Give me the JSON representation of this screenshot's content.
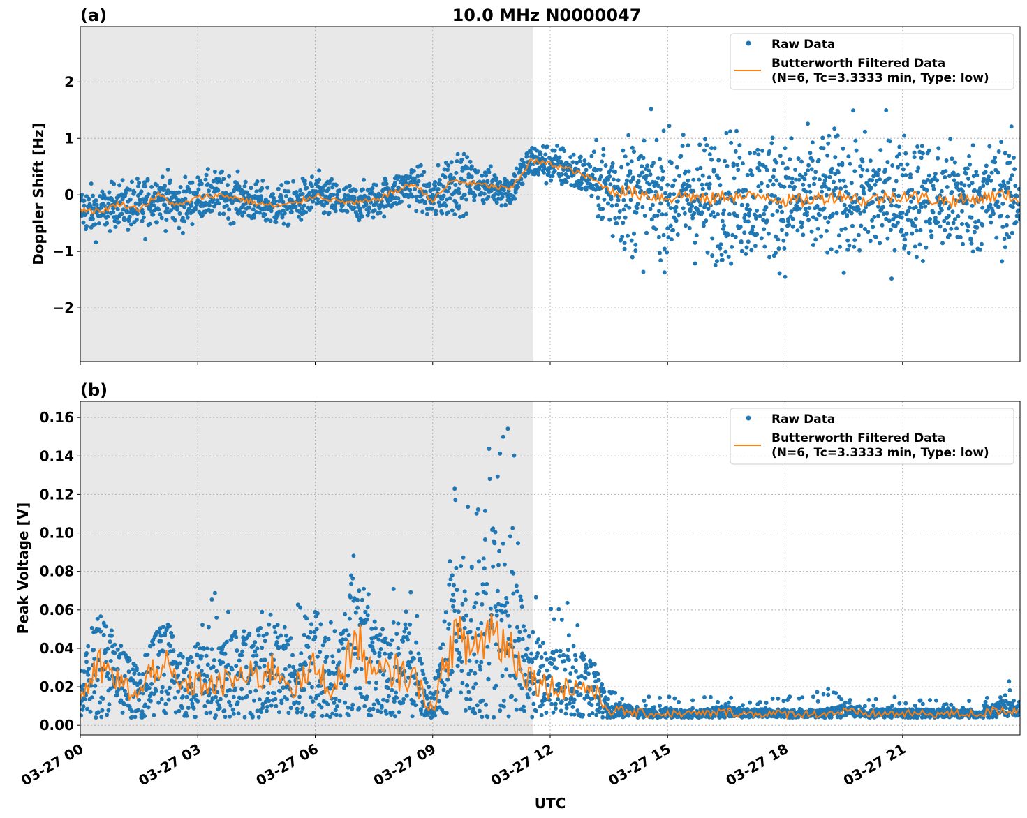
{
  "title": "10.0 MHz N0000047",
  "colors": {
    "raw": "#1f77b4",
    "filtered": "#ff7f0e",
    "shade": "#e8e8e8"
  },
  "chart_data": [
    {
      "type": "scatter",
      "panel_label": "(a)",
      "ylabel": "Doppler Shift [Hz]",
      "xlabel": "",
      "ylim": [
        -2.95,
        2.98
      ],
      "yticks": [
        2,
        1,
        0,
        -1,
        -2
      ],
      "ytick_labels": [
        "2",
        "1",
        "0",
        "−1",
        "−2"
      ],
      "xlim_hours": [
        0,
        24
      ],
      "shaded_hours": [
        0,
        11.57
      ],
      "grid": true,
      "legend": {
        "placement": "top-right",
        "entries": [
          "Raw Data",
          "Butterworth Filtered Data",
          "(N=6, Tc=3.3333 min, Type: low)"
        ]
      },
      "x_hours": [
        0,
        0.5,
        1,
        1.5,
        2,
        2.5,
        3,
        3.5,
        4,
        4.5,
        5,
        5.5,
        6,
        6.5,
        7,
        7.5,
        8,
        8.5,
        9,
        9.5,
        10,
        10.5,
        11,
        11.5,
        12,
        12.5,
        13,
        13.5,
        14,
        14.5,
        15,
        15.5,
        16,
        16.5,
        17,
        17.5,
        18,
        18.5,
        19,
        19.5,
        20,
        20.5,
        21,
        21.5,
        22,
        22.5,
        23,
        23.5,
        24
      ],
      "series": [
        {
          "name": "Butterworth Filtered Data",
          "values": [
            -0.25,
            -0.3,
            -0.15,
            -0.25,
            0.0,
            -0.2,
            -0.05,
            0.0,
            -0.05,
            -0.15,
            -0.2,
            -0.15,
            0.0,
            -0.1,
            -0.15,
            -0.1,
            0.05,
            0.2,
            -0.1,
            0.25,
            0.2,
            0.15,
            0.1,
            0.6,
            0.55,
            0.45,
            0.3,
            0.1,
            0.05,
            0.0,
            -0.05,
            0.0,
            -0.1,
            0.0,
            -0.05,
            0.0,
            -0.1,
            -0.1,
            -0.05,
            0.0,
            -0.1,
            -0.05,
            0.0,
            -0.05,
            -0.1,
            -0.1,
            -0.05,
            0.0,
            -0.05
          ]
        },
        {
          "name": "Raw Data",
          "spread": [
            0.4,
            0.4,
            0.35,
            0.5,
            0.4,
            0.45,
            0.35,
            0.4,
            0.35,
            0.35,
            0.35,
            0.35,
            0.35,
            0.35,
            0.3,
            0.3,
            0.3,
            0.35,
            0.4,
            0.6,
            0.35,
            0.3,
            0.3,
            0.3,
            0.35,
            0.35,
            0.35,
            0.9,
            1.0,
            1.0,
            1.0,
            1.0,
            1.05,
            1.05,
            1.05,
            1.05,
            1.05,
            1.05,
            1.05,
            1.05,
            1.05,
            1.05,
            1.0,
            1.0,
            0.95,
            0.95,
            0.9,
            0.9,
            0.85
          ]
        }
      ]
    },
    {
      "type": "scatter",
      "panel_label": "(b)",
      "ylabel": "Peak Voltage [V]",
      "xlabel": "UTC",
      "ylim": [
        -0.005,
        0.1684
      ],
      "yticks": [
        0.16,
        0.14,
        0.12,
        0.1,
        0.08,
        0.06,
        0.04,
        0.02,
        0.0
      ],
      "ytick_labels": [
        "0.16",
        "0.14",
        "0.12",
        "0.10",
        "0.08",
        "0.06",
        "0.04",
        "0.02",
        "0.00"
      ],
      "xticks_hours": [
        0,
        3,
        6,
        9,
        12,
        15,
        18,
        21
      ],
      "xtick_labels": [
        "03-27 00",
        "03-27 03",
        "03-27 06",
        "03-27 09",
        "03-27 12",
        "03-27 15",
        "03-27 18",
        "03-27 21"
      ],
      "xlim_hours": [
        0,
        24
      ],
      "shaded_hours": [
        0,
        11.57
      ],
      "grid": true,
      "legend": {
        "placement": "top-right",
        "entries": [
          "Raw Data",
          "Butterworth Filtered Data",
          "(N=6, Tc=3.3333 min, Type: low)"
        ]
      },
      "x_hours": [
        0,
        0.5,
        1,
        1.5,
        2,
        2.5,
        3,
        3.5,
        4,
        4.5,
        5,
        5.5,
        6,
        6.5,
        7,
        7.5,
        8,
        8.5,
        9,
        9.5,
        10,
        10.5,
        11,
        11.5,
        12,
        12.5,
        13,
        13.5,
        14,
        14.5,
        15,
        15.5,
        16,
        16.5,
        17,
        17.5,
        18,
        18.5,
        19,
        19.5,
        20,
        20.5,
        21,
        21.5,
        22,
        22.5,
        23,
        23.5,
        24
      ],
      "series": [
        {
          "name": "Butterworth Filtered Data",
          "values": [
            0.015,
            0.03,
            0.022,
            0.015,
            0.035,
            0.02,
            0.022,
            0.02,
            0.025,
            0.025,
            0.03,
            0.02,
            0.03,
            0.018,
            0.045,
            0.025,
            0.028,
            0.025,
            0.008,
            0.045,
            0.04,
            0.05,
            0.04,
            0.025,
            0.02,
            0.02,
            0.02,
            0.008,
            0.007,
            0.006,
            0.006,
            0.006,
            0.006,
            0.007,
            0.006,
            0.006,
            0.006,
            0.006,
            0.006,
            0.007,
            0.006,
            0.006,
            0.006,
            0.006,
            0.006,
            0.006,
            0.006,
            0.008,
            0.008
          ]
        },
        {
          "name": "Raw Data",
          "upper": [
            0.06,
            0.065,
            0.045,
            0.03,
            0.05,
            0.055,
            0.065,
            0.07,
            0.055,
            0.06,
            0.07,
            0.065,
            0.065,
            0.055,
            0.09,
            0.075,
            0.075,
            0.07,
            0.03,
            0.13,
            0.12,
            0.16,
            0.16,
            0.08,
            0.065,
            0.08,
            0.04,
            0.02,
            0.015,
            0.015,
            0.015,
            0.015,
            0.015,
            0.015,
            0.015,
            0.015,
            0.015,
            0.015,
            0.02,
            0.015,
            0.015,
            0.015,
            0.015,
            0.015,
            0.015,
            0.015,
            0.015,
            0.015,
            0.033
          ],
          "lower": 0.004
        }
      ]
    }
  ]
}
